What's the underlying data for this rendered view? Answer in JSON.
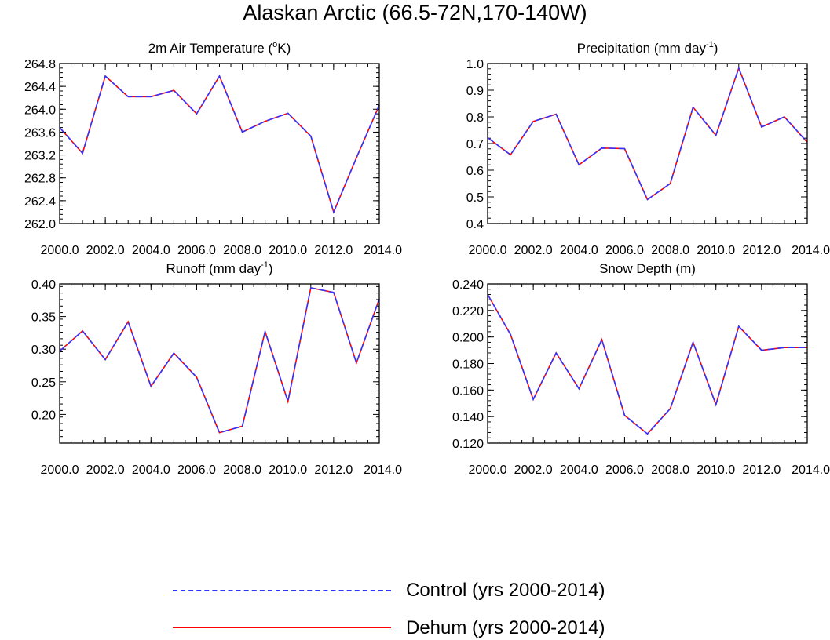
{
  "title": "Alaskan Arctic (66.5-72N,170-140W)",
  "legend": {
    "items": [
      {
        "label": "Control (yrs 2000-2014)",
        "color": "#3333ff",
        "style": "dashed"
      },
      {
        "label": "Dehum (yrs 2000-2014)",
        "color": "#ff0000",
        "style": "solid"
      }
    ]
  },
  "chart_data": [
    {
      "type": "line",
      "title": "2m Air Temperature (",
      "title_sup": "o",
      "title_tail": "K)",
      "x": [
        2000,
        2001,
        2002,
        2003,
        2004,
        2005,
        2006,
        2007,
        2008,
        2009,
        2010,
        2011,
        2012,
        2013,
        2014
      ],
      "xticks": [
        2000,
        2002,
        2004,
        2006,
        2008,
        2010,
        2012,
        2014
      ],
      "xtick_labels": [
        "2000.0",
        "2002.0",
        "2004.0",
        "2006.0",
        "2008.0",
        "2010.0",
        "2012.0",
        "2014.0"
      ],
      "xlim": [
        2000,
        2014
      ],
      "ylim": [
        262.0,
        264.8
      ],
      "yticks": [
        262.0,
        262.4,
        262.8,
        263.2,
        263.6,
        264.0,
        264.4,
        264.8
      ],
      "ytick_labels": [
        "262.0",
        "262.4",
        "262.8",
        "263.2",
        "263.6",
        "264.0",
        "264.4",
        "264.8"
      ],
      "series": [
        {
          "name": "Control (yrs 2000-2014)",
          "values": [
            263.68,
            263.23,
            264.58,
            264.22,
            264.22,
            264.33,
            263.92,
            264.58,
            263.6,
            263.79,
            263.93,
            263.53,
            262.2,
            263.15,
            264.07
          ]
        },
        {
          "name": "Dehum (yrs 2000-2014)",
          "values": [
            263.68,
            263.23,
            264.58,
            264.22,
            264.22,
            264.33,
            263.92,
            264.58,
            263.6,
            263.79,
            263.93,
            263.53,
            262.2,
            263.15,
            264.07
          ]
        }
      ]
    },
    {
      "type": "line",
      "title": "Precipitation (mm day",
      "title_sup": "-1",
      "title_tail": ")",
      "x": [
        2000,
        2001,
        2002,
        2003,
        2004,
        2005,
        2006,
        2007,
        2008,
        2009,
        2010,
        2011,
        2012,
        2013,
        2014
      ],
      "xticks": [
        2000,
        2002,
        2004,
        2006,
        2008,
        2010,
        2012,
        2014
      ],
      "xtick_labels": [
        "2000.0",
        "2002.0",
        "2004.0",
        "2006.0",
        "2008.0",
        "2010.0",
        "2012.0",
        "2014.0"
      ],
      "xlim": [
        2000,
        2014
      ],
      "ylim": [
        0.4,
        1.0
      ],
      "yticks": [
        0.4,
        0.5,
        0.6,
        0.7,
        0.8,
        0.9,
        1.0
      ],
      "ytick_labels": [
        "0.4",
        "0.5",
        "0.6",
        "0.7",
        "0.8",
        "0.9",
        "1.0"
      ],
      "series": [
        {
          "name": "Control (yrs 2000-2014)",
          "values": [
            0.722,
            0.658,
            0.783,
            0.81,
            0.62,
            0.683,
            0.681,
            0.49,
            0.55,
            0.836,
            0.731,
            0.983,
            0.762,
            0.8,
            0.705
          ]
        },
        {
          "name": "Dehum (yrs 2000-2014)",
          "values": [
            0.722,
            0.658,
            0.783,
            0.81,
            0.62,
            0.683,
            0.681,
            0.49,
            0.55,
            0.836,
            0.731,
            0.983,
            0.762,
            0.8,
            0.705
          ]
        }
      ]
    },
    {
      "type": "line",
      "title": "Runoff (mm day",
      "title_sup": "-1",
      "title_tail": ")",
      "x": [
        2000,
        2001,
        2002,
        2003,
        2004,
        2005,
        2006,
        2007,
        2008,
        2009,
        2010,
        2011,
        2012,
        2013,
        2014
      ],
      "xticks": [
        2000,
        2002,
        2004,
        2006,
        2008,
        2010,
        2012,
        2014
      ],
      "xtick_labels": [
        "2000.0",
        "2002.0",
        "2004.0",
        "2006.0",
        "2008.0",
        "2010.0",
        "2012.0",
        "2014.0"
      ],
      "xlim": [
        2000,
        2014
      ],
      "ylim": [
        0.156,
        0.4
      ],
      "yticks": [
        0.2,
        0.25,
        0.3,
        0.35,
        0.4
      ],
      "ytick_labels": [
        "0.20",
        "0.25",
        "0.30",
        "0.35",
        "0.40"
      ],
      "series": [
        {
          "name": "Control (yrs 2000-2014)",
          "values": [
            0.297,
            0.328,
            0.284,
            0.342,
            0.243,
            0.294,
            0.257,
            0.172,
            0.182,
            0.327,
            0.22,
            0.394,
            0.387,
            0.279,
            0.377
          ]
        },
        {
          "name": "Dehum (yrs 2000-2014)",
          "values": [
            0.297,
            0.328,
            0.284,
            0.342,
            0.243,
            0.294,
            0.257,
            0.172,
            0.182,
            0.327,
            0.22,
            0.394,
            0.387,
            0.279,
            0.377
          ]
        }
      ]
    },
    {
      "type": "line",
      "title": "Snow Depth (m)",
      "title_sup": "",
      "title_tail": "",
      "x": [
        2000,
        2001,
        2002,
        2003,
        2004,
        2005,
        2006,
        2007,
        2008,
        2009,
        2010,
        2011,
        2012,
        2013,
        2014
      ],
      "xticks": [
        2000,
        2002,
        2004,
        2006,
        2008,
        2010,
        2012,
        2014
      ],
      "xtick_labels": [
        "2000.0",
        "2002.0",
        "2004.0",
        "2006.0",
        "2008.0",
        "2010.0",
        "2012.0",
        "2014.0"
      ],
      "xlim": [
        2000,
        2014
      ],
      "ylim": [
        0.12,
        0.24
      ],
      "yticks": [
        0.12,
        0.14,
        0.16,
        0.18,
        0.2,
        0.22,
        0.24
      ],
      "ytick_labels": [
        "0.120",
        "0.140",
        "0.160",
        "0.180",
        "0.200",
        "0.220",
        "0.240"
      ],
      "series": [
        {
          "name": "Control (yrs 2000-2014)",
          "values": [
            0.232,
            0.202,
            0.153,
            0.188,
            0.161,
            0.198,
            0.141,
            0.127,
            0.146,
            0.196,
            0.149,
            0.208,
            0.19,
            0.192,
            0.192
          ]
        },
        {
          "name": "Dehum (yrs 2000-2014)",
          "values": [
            0.232,
            0.202,
            0.153,
            0.188,
            0.161,
            0.198,
            0.141,
            0.127,
            0.146,
            0.196,
            0.149,
            0.208,
            0.19,
            0.192,
            0.192
          ]
        }
      ]
    }
  ]
}
